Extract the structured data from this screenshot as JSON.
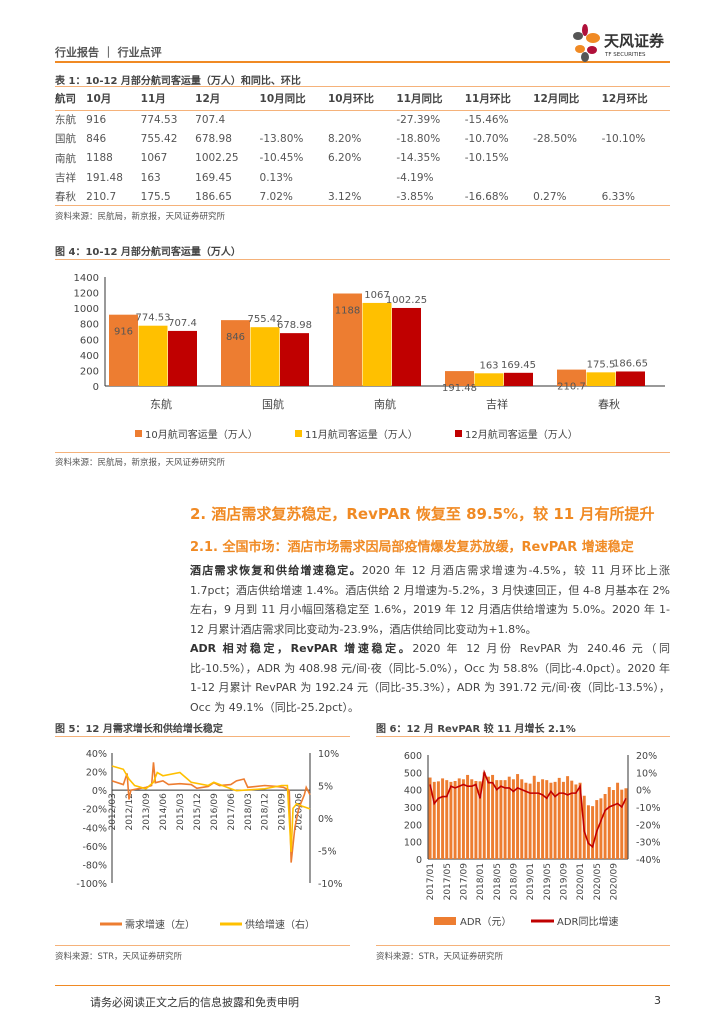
{
  "header": {
    "category": "行业报告 ｜ 行业点评",
    "logo_cn": "天风证券",
    "logo_en": "TF SECURITIES"
  },
  "table1": {
    "title": "表 1：10-12 月部分航司客运量（万人）和同比、环比",
    "columns": [
      "航司",
      "10月",
      "11月",
      "12月",
      "10月同比",
      "10月环比",
      "11月同比",
      "11月环比",
      "12月同比",
      "12月环比"
    ],
    "rows": [
      [
        "东航",
        "916",
        "774.53",
        "707.4",
        "",
        "",
        "-27.39%",
        "-15.46%",
        "",
        ""
      ],
      [
        "国航",
        "846",
        "755.42",
        "678.98",
        "-13.80%",
        "8.20%",
        "-18.80%",
        "-10.70%",
        "-28.50%",
        "-10.10%"
      ],
      [
        "南航",
        "1188",
        "1067",
        "1002.25",
        "-10.45%",
        "6.20%",
        "-14.35%",
        "-10.15%",
        "",
        ""
      ],
      [
        "吉祥",
        "191.48",
        "163",
        "169.45",
        "0.13%",
        "",
        "-4.19%",
        "",
        "",
        ""
      ],
      [
        "春秋",
        "210.7",
        "175.5",
        "186.65",
        "7.02%",
        "3.12%",
        "-3.85%",
        "-16.68%",
        "0.27%",
        "6.33%"
      ]
    ],
    "source": "资料来源：民航局，新京报，天风证券研究所"
  },
  "fig4": {
    "title": "图 4：10-12 月部分航司客运量（万人）",
    "source": "资料来源：民航局，新京报，天风证券研究所"
  },
  "section": {
    "h1": "2. 酒店需求复苏稳定，RevPAR 恢复至 89.5%，较 11 月有所提升",
    "h2": "2.1. 全国市场：酒店市场需求因局部疫情爆发复苏放缓，RevPAR 增速稳定",
    "p1_bold": "酒店需求恢复和供给增速稳定。",
    "p1": "2020 年 12 月酒店需求增速为-4.5%，较 11 月环比上涨 1.7pct；酒店供给增速 1.4%。酒店供给 2 月增速为-5.2%，3 月快速回正，但 4-8 月基本在 2%左右，9 月到 11 月小幅回落稳定至 1.6%，2019 年 12 月酒店供给增速为 5.0%。2020 年 1-12 月累计酒店需求同比变动为-23.9%，酒店供给同比变动为+1.8%。",
    "p2_bold": "ADR 相对稳定，RevPAR 增速稳定。",
    "p2": "2020 年 12 月份 RevPAR 为 240.46 元（同比-10.5%），ADR 为 408.98 元/间·夜（同比-5.0%），Occ 为 58.8%（同比-4.0pct）。2020 年 1-12 月累计 RevPAR 为 192.24 元（同比-35.3%），ADR 为 391.72 元/间·夜（同比-13.5%），Occ 为 49.1%（同比-25.2pct）。"
  },
  "fig5": {
    "title": "图 5：12 月需求增长和供给增长稳定",
    "source": "资料来源：STR，天风证券研究所"
  },
  "fig6": {
    "title": "图 6：12 月 RevPAR 较 11 月增长 2.1%",
    "source": "资料来源：STR，天风证券研究所"
  },
  "footer": {
    "disclaimer": "请务必阅读正文之后的信息披露和免责申明",
    "page": "3"
  },
  "chart_data": [
    {
      "type": "bar",
      "categories": [
        "东航",
        "国航",
        "南航",
        "吉祥",
        "春秋"
      ],
      "series": [
        {
          "name": "10月航司客运量（万人）",
          "values": [
            916,
            846,
            1188,
            191.48,
            210.7
          ],
          "color": "#ed7d31"
        },
        {
          "name": "11月航司客运量（万人）",
          "values": [
            774.53,
            755.42,
            1067,
            163,
            175.5
          ],
          "color": "#ffc000"
        },
        {
          "name": "12月航司客运量（万人）",
          "values": [
            707.4,
            678.98,
            1002.25,
            169.45,
            186.65
          ],
          "color": "#c00000"
        }
      ],
      "ylim": [
        0,
        1400
      ],
      "yticks": [
        "0",
        "200",
        "400",
        "600",
        "800",
        "1000",
        "1200",
        "1400"
      ],
      "legend": "bottom"
    },
    {
      "type": "line",
      "xticks": [
        "2012/03",
        "2012/12",
        "2013/09",
        "2014/06",
        "2015/03",
        "2015/12",
        "2016/09",
        "2017/06",
        "2018/03",
        "2018/12",
        "2019/09",
        "2020/06"
      ],
      "y_left": {
        "ylim": [
          -100,
          40
        ],
        "ticks": [
          "-100%",
          "-80%",
          "-60%",
          "-40%",
          "-20%",
          "0%",
          "20%",
          "40%"
        ]
      },
      "y_right": {
        "ylim": [
          -10,
          10
        ],
        "ticks": [
          "-10%",
          "-5%",
          "0%",
          "5%",
          "10%"
        ]
      },
      "series": [
        {
          "name": "需求增速（左）",
          "color": "#ed7d31",
          "axis": "left",
          "points": [
            [
              "2012/03",
              10
            ],
            [
              "2012/09",
              6
            ],
            [
              "2012/11",
              18
            ],
            [
              "2012/12",
              -10
            ],
            [
              "2013/01",
              0
            ],
            [
              "2013/06",
              2
            ],
            [
              "2013/09",
              3
            ],
            [
              "2013/12",
              5
            ],
            [
              "2014/01",
              30
            ],
            [
              "2014/02",
              8
            ],
            [
              "2014/06",
              10
            ],
            [
              "2014/09",
              6
            ],
            [
              "2015/03",
              7
            ],
            [
              "2015/09",
              6
            ],
            [
              "2015/12",
              2
            ],
            [
              "2016/06",
              4
            ],
            [
              "2016/09",
              8
            ],
            [
              "2016/12",
              5
            ],
            [
              "2017/06",
              6
            ],
            [
              "2017/09",
              10
            ],
            [
              "2018/01",
              12
            ],
            [
              "2018/03",
              3
            ],
            [
              "2018/12",
              5
            ],
            [
              "2019/06",
              4
            ],
            [
              "2019/10",
              3
            ],
            [
              "2020/01",
              0
            ],
            [
              "2020/02",
              -78
            ],
            [
              "2020/04",
              -40
            ],
            [
              "2020/06",
              -20
            ],
            [
              "2020/09",
              -5
            ],
            [
              "2020/10",
              3
            ],
            [
              "2020/12",
              -5
            ]
          ]
        },
        {
          "name": "供给增速（右）",
          "color": "#ffc000",
          "axis": "right",
          "points": [
            [
              "2012/03",
              8
            ],
            [
              "2012/09",
              7.5
            ],
            [
              "2012/12",
              6
            ],
            [
              "2013/03",
              5
            ],
            [
              "2013/09",
              4.5
            ],
            [
              "2014/01",
              5.5
            ],
            [
              "2014/03",
              7
            ],
            [
              "2014/06",
              6.5
            ],
            [
              "2015/03",
              7
            ],
            [
              "2015/09",
              5.5
            ],
            [
              "2016/06",
              5
            ],
            [
              "2016/09",
              5.5
            ],
            [
              "2017/06",
              4.5
            ],
            [
              "2017/09",
              4.2
            ],
            [
              "2018/12",
              4.5
            ],
            [
              "2019/09",
              5
            ],
            [
              "2019/12",
              5
            ],
            [
              "2020/02",
              -5.2
            ],
            [
              "2020/03",
              1.5
            ],
            [
              "2020/05",
              2.2
            ],
            [
              "2020/08",
              1.8
            ],
            [
              "2020/12",
              1.4
            ]
          ]
        }
      ],
      "legend": "bottom"
    },
    {
      "type": "bar",
      "x_start": "2017/01",
      "xticks": [
        "2017/01",
        "2017/05",
        "2017/09",
        "2018/01",
        "2018/05",
        "2018/09",
        "2019/01",
        "2019/05",
        "2019/09",
        "2020/01",
        "2020/05",
        "2020/09"
      ],
      "y_left": {
        "ylim": [
          0,
          600
        ],
        "ticks": [
          "0",
          "100",
          "200",
          "300",
          "400",
          "500",
          "600"
        ]
      },
      "y_right": {
        "ylim": [
          -40,
          20
        ],
        "ticks": [
          "-40%",
          "-30%",
          "-20%",
          "-10%",
          "0%",
          "10%",
          "20%"
        ]
      },
      "series": [
        {
          "name": "ADR（元）",
          "type": "bar",
          "color": "#ed7d31",
          "values": [
            470,
            445,
            448,
            465,
            455,
            445,
            450,
            465,
            460,
            485,
            460,
            450,
            448,
            500,
            475,
            485,
            455,
            455,
            455,
            475,
            460,
            490,
            460,
            440,
            435,
            480,
            445,
            460,
            455,
            440,
            445,
            468,
            445,
            478,
            452,
            430,
            440,
            365,
            310,
            305,
            340,
            350,
            375,
            415,
            398,
            440,
            400,
            408
          ]
        },
        {
          "name": "ADR同比增速",
          "type": "line",
          "axis": "right",
          "color": "#c00000",
          "values": [
            3,
            -8,
            -5,
            -4,
            -4,
            2,
            1,
            2,
            3,
            2,
            2,
            3,
            -5,
            10,
            4,
            4,
            0,
            2,
            1,
            1,
            -1,
            1,
            0,
            -1,
            -2,
            -2,
            -2,
            -3,
            -5,
            -1,
            -4,
            -2,
            -2,
            -3,
            -2,
            -2,
            2,
            -24,
            -31,
            -33,
            -24,
            -18,
            -12,
            -10,
            -9,
            -8,
            -10,
            -5
          ]
        }
      ],
      "legend": "bottom"
    }
  ]
}
